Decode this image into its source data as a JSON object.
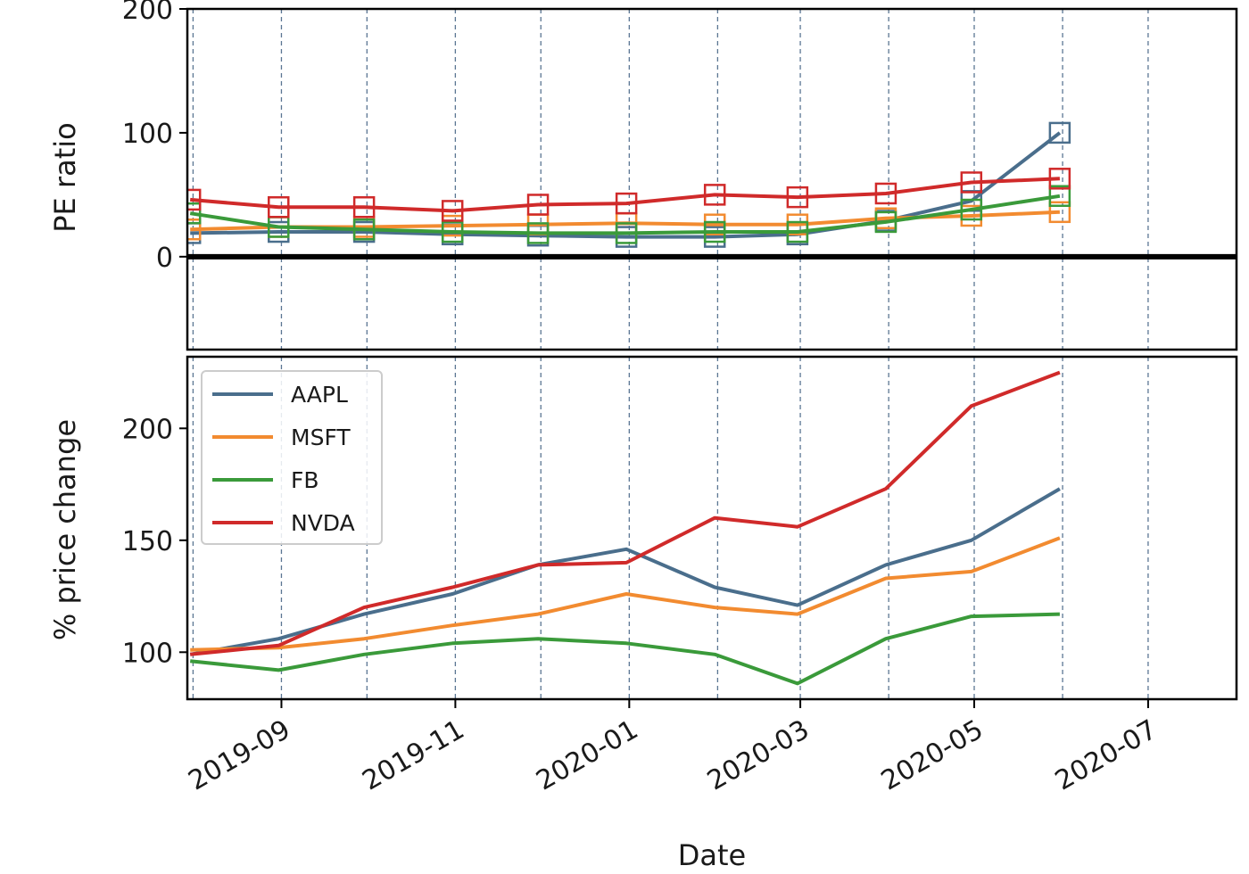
{
  "chart_data": [
    {
      "type": "line",
      "ylabel": "PE ratio",
      "ylim": [
        -75,
        200
      ],
      "yticks": [
        0,
        100,
        200
      ],
      "xlim": [
        "2019-07-30",
        "2020-08-01"
      ],
      "x": [
        "2019-07-31",
        "2019-08-31",
        "2019-09-30",
        "2019-10-31",
        "2019-11-30",
        "2019-12-31",
        "2020-01-31",
        "2020-02-29",
        "2020-03-31",
        "2020-04-30",
        "2020-05-31"
      ],
      "zero_line": true,
      "markers": "square-hollow",
      "series": [
        {
          "name": "AAPL",
          "color": "#4a6e8c",
          "values": [
            19,
            20,
            20,
            18,
            17,
            16,
            16,
            18,
            29,
            45,
            100
          ]
        },
        {
          "name": "MSFT",
          "color": "#f28b30",
          "values": [
            22,
            24,
            24,
            25,
            26,
            27,
            26,
            26,
            31,
            33,
            36
          ]
        },
        {
          "name": "FB",
          "color": "#3a9a3a",
          "values": [
            35,
            24,
            22,
            20,
            19,
            19,
            20,
            20,
            28,
            38,
            49
          ]
        },
        {
          "name": "NVDA",
          "color": "#d02a2a",
          "values": [
            46,
            40,
            40,
            37,
            42,
            43,
            50,
            48,
            51,
            60,
            63
          ]
        }
      ]
    },
    {
      "type": "line",
      "ylabel": "% price change",
      "xlabel": "Date",
      "ylim": [
        79,
        232
      ],
      "yticks": [
        100,
        150,
        200
      ],
      "xlim": [
        "2019-07-30",
        "2020-08-01"
      ],
      "xticks": [
        "2019-09",
        "2019-11",
        "2020-01",
        "2020-03",
        "2020-05",
        "2020-07"
      ],
      "x": [
        "2019-07-31",
        "2019-08-31",
        "2019-09-30",
        "2019-10-31",
        "2019-11-30",
        "2019-12-31",
        "2020-01-31",
        "2020-02-29",
        "2020-03-31",
        "2020-04-30",
        "2020-05-31"
      ],
      "legend": "upper-left",
      "series": [
        {
          "name": "AAPL",
          "color": "#4a6e8c",
          "values": [
            99,
            106,
            117,
            126,
            139,
            146,
            129,
            121,
            139,
            150,
            173
          ]
        },
        {
          "name": "MSFT",
          "color": "#f28b30",
          "values": [
            101,
            102,
            106,
            112,
            117,
            126,
            120,
            117,
            133,
            136,
            151
          ]
        },
        {
          "name": "FB",
          "color": "#3a9a3a",
          "values": [
            96,
            92,
            99,
            104,
            106,
            104,
            99,
            86,
            106,
            116,
            117
          ]
        },
        {
          "name": "NVDA",
          "color": "#d02a2a",
          "values": [
            99,
            103,
            120,
            129,
            139,
            140,
            160,
            156,
            173,
            210,
            225
          ]
        }
      ]
    }
  ]
}
